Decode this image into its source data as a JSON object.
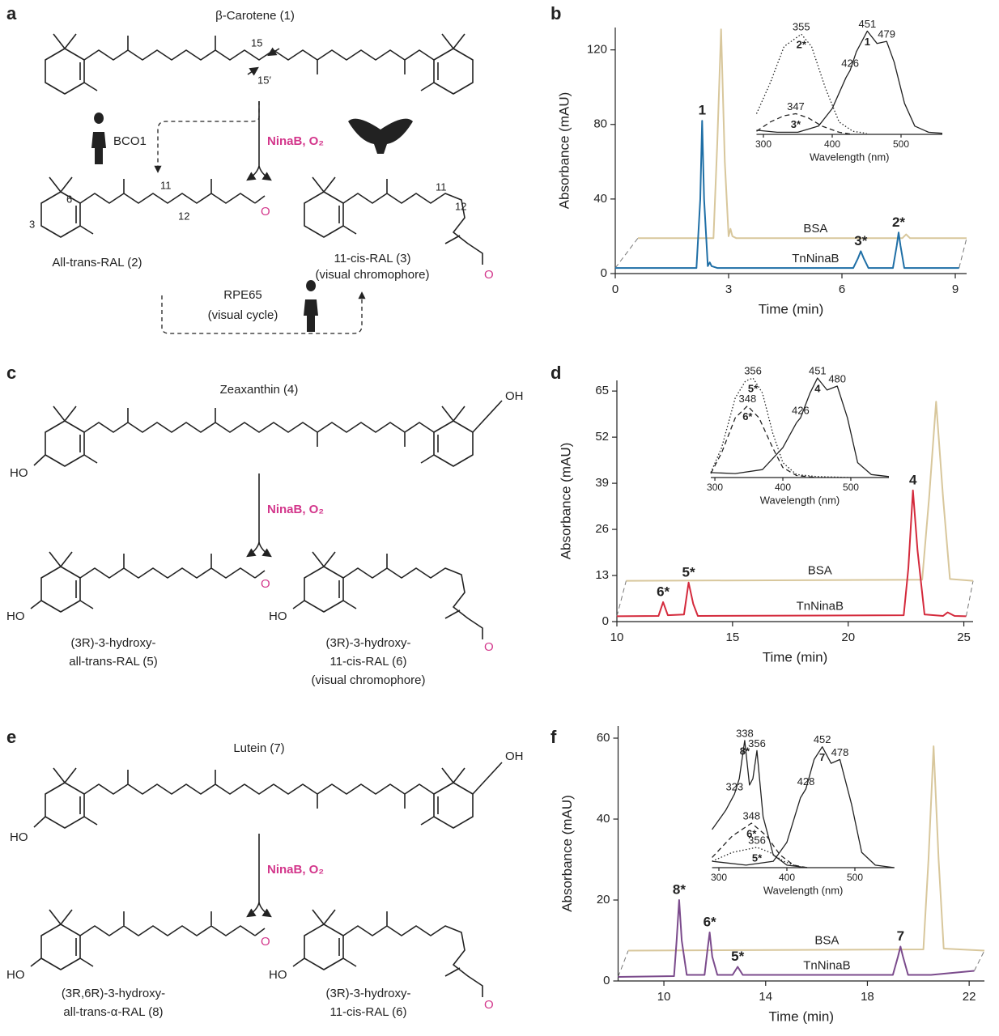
{
  "panel_labels": [
    "a",
    "b",
    "c",
    "d",
    "e",
    "f"
  ],
  "schemes": [
    {
      "texts": [
        "β-Carotene (1)",
        "15",
        "15′",
        "BCO1",
        "NinaB, O₂",
        "6",
        "11",
        "12",
        "3",
        "O",
        "All-trans-RAL (2)",
        "11",
        "12",
        "O",
        "11-cis-RAL (3)",
        "(visual chromophore)",
        "RPE65",
        "(visual cycle)"
      ]
    },
    {
      "texts": [
        "Zeaxanthin (4)",
        "OH",
        "HO",
        "NinaB, O₂",
        "HO",
        "O",
        "(3R)-3-hydroxy-",
        "all-trans-RAL (5)",
        "HO",
        "O",
        "(3R)-3-hydroxy-",
        "11-cis-RAL (6)",
        "(visual chromophore)"
      ]
    },
    {
      "texts": [
        "Lutein (7)",
        "OH",
        "HO",
        "NinaB, O₂",
        "HO",
        "O",
        "(3R,6R)-3-hydroxy-",
        "all-trans-α-RAL (8)",
        "HO",
        "O",
        "(3R)-3-hydroxy-",
        "11-cis-RAL (6)"
      ]
    }
  ],
  "chart_data": [
    {
      "type": "line",
      "xlabel": "Time (min)",
      "ylabel": "Absorbance (mAU)",
      "xlim": [
        0,
        9.3
      ],
      "ylim": [
        0,
        132
      ],
      "xticks": [
        0,
        3,
        6,
        9
      ],
      "yticks": [
        0,
        40,
        80,
        120
      ],
      "series": [
        {
          "name": "BSA",
          "color": "#d8c79c",
          "x": [
            0.6,
            2.6,
            2.7,
            2.8,
            2.9,
            3.0,
            3.05,
            3.1,
            3.2,
            7.6,
            7.7,
            7.8,
            9.3
          ],
          "values": [
            19,
            19,
            70,
            131,
            60,
            20,
            24,
            20,
            19,
            19,
            21,
            19,
            19
          ]
        },
        {
          "name": "TnNinaB",
          "color": "#1f6fa6",
          "x": [
            0,
            2.15,
            2.25,
            2.3,
            2.35,
            2.45,
            2.5,
            2.55,
            2.7,
            6.3,
            6.42,
            6.5,
            6.58,
            6.7,
            7.35,
            7.45,
            7.5,
            7.55,
            7.65,
            9.1
          ],
          "values": [
            3,
            3,
            40,
            82,
            40,
            4,
            6,
            4,
            3,
            3,
            8,
            12,
            8,
            3,
            3,
            15,
            22,
            15,
            3,
            3
          ]
        }
      ],
      "annotations": [
        {
          "text": "1",
          "x": 2.3
        },
        {
          "text": "3*",
          "x": 6.5
        },
        {
          "text": "2*",
          "x": 7.5
        }
      ]
    },
    {
      "type": "line",
      "xlabel": "Wavelength (nm)",
      "xlim": [
        290,
        560
      ],
      "ylim": [
        0,
        1.05
      ],
      "xticks": [
        300,
        400,
        500
      ],
      "series": [
        {
          "name": "1",
          "line": "solid",
          "color": "#222222",
          "x": [
            290,
            320,
            350,
            380,
            400,
            420,
            426,
            435,
            451,
            465,
            479,
            490,
            505,
            520,
            540,
            560
          ],
          "values": [
            0.04,
            0.02,
            0.02,
            0.08,
            0.25,
            0.55,
            0.62,
            0.8,
            1.0,
            0.88,
            0.9,
            0.7,
            0.3,
            0.08,
            0.02,
            0.01
          ],
          "peaks": [
            426,
            451,
            479
          ]
        },
        {
          "name": "2*",
          "line": "dotted",
          "color": "#222222",
          "x": [
            290,
            310,
            330,
            355,
            370,
            390,
            410,
            430,
            450
          ],
          "values": [
            0.2,
            0.5,
            0.85,
            0.97,
            0.85,
            0.45,
            0.12,
            0.03,
            0.01
          ],
          "peaks": [
            355
          ]
        },
        {
          "name": "3*",
          "line": "dashed",
          "color": "#222222",
          "x": [
            290,
            310,
            330,
            347,
            365,
            385,
            410,
            430
          ],
          "values": [
            0.03,
            0.12,
            0.18,
            0.2,
            0.16,
            0.08,
            0.02,
            0
          ],
          "peaks": [
            347
          ]
        }
      ]
    },
    {
      "type": "line",
      "xlabel": "Time (min)",
      "ylabel": "Absorbance (mAU)",
      "xlim": [
        10,
        25.4
      ],
      "ylim": [
        0,
        68
      ],
      "xticks": [
        10,
        15,
        20,
        25
      ],
      "yticks": [
        0,
        13,
        26,
        39,
        52,
        65
      ],
      "series": [
        {
          "name": "BSA",
          "color": "#d8c79c",
          "x": [
            10.4,
            23.2,
            23.5,
            23.8,
            24.1,
            24.4,
            25.4
          ],
          "values": [
            11.5,
            11.8,
            35,
            62,
            35,
            12,
            11.5
          ]
        },
        {
          "name": "TnNinaB",
          "color": "#d42a3c",
          "x": [
            10,
            11.8,
            12,
            12.2,
            12.9,
            13.1,
            13.3,
            13.5,
            22.4,
            22.6,
            22.8,
            23.0,
            23.3,
            24.1,
            24.3,
            24.6,
            25.1
          ],
          "values": [
            1.5,
            1.6,
            5.5,
            1.8,
            2,
            11,
            5,
            1.6,
            1.8,
            15,
            37,
            20,
            2,
            1.6,
            2.6,
            1.6,
            1.5
          ]
        }
      ],
      "annotations": [
        {
          "text": "6*",
          "x": 12
        },
        {
          "text": "5*",
          "x": 13.1
        },
        {
          "text": "4",
          "x": 22.8
        }
      ]
    },
    {
      "type": "line",
      "xlabel": "Wavelength (nm)",
      "xlim": [
        294,
        556
      ],
      "ylim": [
        0,
        1.05
      ],
      "xticks": [
        300,
        400,
        500
      ],
      "series": [
        {
          "name": "4",
          "line": "solid",
          "color": "#222222",
          "x": [
            294,
            330,
            370,
            400,
            420,
            426,
            440,
            451,
            465,
            480,
            495,
            510,
            530,
            556
          ],
          "values": [
            0.05,
            0.04,
            0.08,
            0.3,
            0.55,
            0.6,
            0.85,
            1.0,
            0.88,
            0.92,
            0.6,
            0.15,
            0.03,
            0.01
          ],
          "peaks": [
            426,
            451,
            480
          ]
        },
        {
          "name": "5*",
          "line": "dotted",
          "color": "#222222",
          "x": [
            294,
            310,
            330,
            345,
            356,
            370,
            385,
            400,
            420,
            450,
            500
          ],
          "values": [
            0.05,
            0.3,
            0.8,
            0.97,
            1.0,
            0.85,
            0.45,
            0.15,
            0.03,
            0.01,
            0
          ],
          "peaks": [
            356
          ]
        },
        {
          "name": "6*",
          "line": "dashed",
          "color": "#222222",
          "x": [
            294,
            310,
            330,
            348,
            365,
            385,
            400,
            420,
            450
          ],
          "values": [
            0.04,
            0.25,
            0.6,
            0.72,
            0.6,
            0.3,
            0.1,
            0.02,
            0
          ],
          "peaks": [
            348
          ]
        }
      ]
    },
    {
      "type": "line",
      "xlabel": "Time (min)",
      "ylabel": "Absorbance (mAU)",
      "xlim": [
        8.2,
        22.6
      ],
      "ylim": [
        0,
        63
      ],
      "xticks": [
        10,
        14,
        18,
        22
      ],
      "yticks": [
        0,
        20,
        40,
        60
      ],
      "series": [
        {
          "name": "BSA",
          "color": "#d8c79c",
          "x": [
            8.6,
            20.2,
            20.4,
            20.6,
            20.8,
            21.0,
            22.6
          ],
          "values": [
            7.5,
            7.8,
            30,
            58,
            30,
            8,
            7.5
          ]
        },
        {
          "name": "TnNinaB",
          "color": "#7b4b8c",
          "x": [
            8.2,
            10.4,
            10.5,
            10.6,
            10.7,
            10.9,
            11.6,
            11.7,
            11.8,
            11.9,
            12.1,
            12.7,
            12.9,
            13.1,
            19.0,
            19.2,
            19.3,
            19.4,
            19.6,
            20.5,
            22.2
          ],
          "values": [
            1,
            1.2,
            10,
            20,
            10,
            1.5,
            1.5,
            7,
            12,
            6,
            1.5,
            1.5,
            3.5,
            1.5,
            1.5,
            6,
            8.5,
            6,
            1.5,
            1.5,
            2.5
          ]
        }
      ],
      "annotations": [
        {
          "text": "8*",
          "x": 10.6
        },
        {
          "text": "6*",
          "x": 11.8
        },
        {
          "text": "5*",
          "x": 12.9
        },
        {
          "text": "7",
          "x": 19.3
        }
      ]
    },
    {
      "type": "line",
      "xlabel": "Wavelength (nm)",
      "xlim": [
        290,
        558
      ],
      "ylim": [
        0,
        1.05
      ],
      "xticks": [
        300,
        400,
        500
      ],
      "series": [
        {
          "name": "7",
          "line": "solid",
          "color": "#222222",
          "x": [
            290,
            340,
            380,
            400,
            420,
            428,
            440,
            452,
            465,
            478,
            495,
            510,
            530,
            558
          ],
          "values": [
            0.05,
            0.02,
            0.05,
            0.2,
            0.55,
            0.62,
            0.85,
            0.95,
            0.82,
            0.85,
            0.5,
            0.12,
            0.02,
            0
          ],
          "peaks": [
            428,
            452,
            478
          ]
        },
        {
          "name": "8*",
          "line": "solid",
          "color": "#222222",
          "x": [
            290,
            310,
            323,
            330,
            338,
            345,
            350,
            356,
            365,
            380,
            400,
            430
          ],
          "values": [
            0.3,
            0.45,
            0.58,
            0.7,
            1.0,
            0.65,
            0.7,
            0.92,
            0.4,
            0.1,
            0.02,
            0
          ],
          "peaks": [
            323,
            338,
            356
          ]
        },
        {
          "name": "6*",
          "line": "dashed",
          "color": "#222222",
          "x": [
            290,
            320,
            348,
            370,
            390,
            410,
            430
          ],
          "values": [
            0.08,
            0.25,
            0.35,
            0.25,
            0.1,
            0.02,
            0
          ],
          "peaks": [
            348
          ]
        },
        {
          "name": "5*",
          "line": "dotted",
          "color": "#222222",
          "x": [
            290,
            320,
            356,
            375,
            395,
            420
          ],
          "values": [
            0.05,
            0.12,
            0.16,
            0.12,
            0.05,
            0
          ],
          "peaks": [
            356
          ]
        }
      ]
    }
  ]
}
